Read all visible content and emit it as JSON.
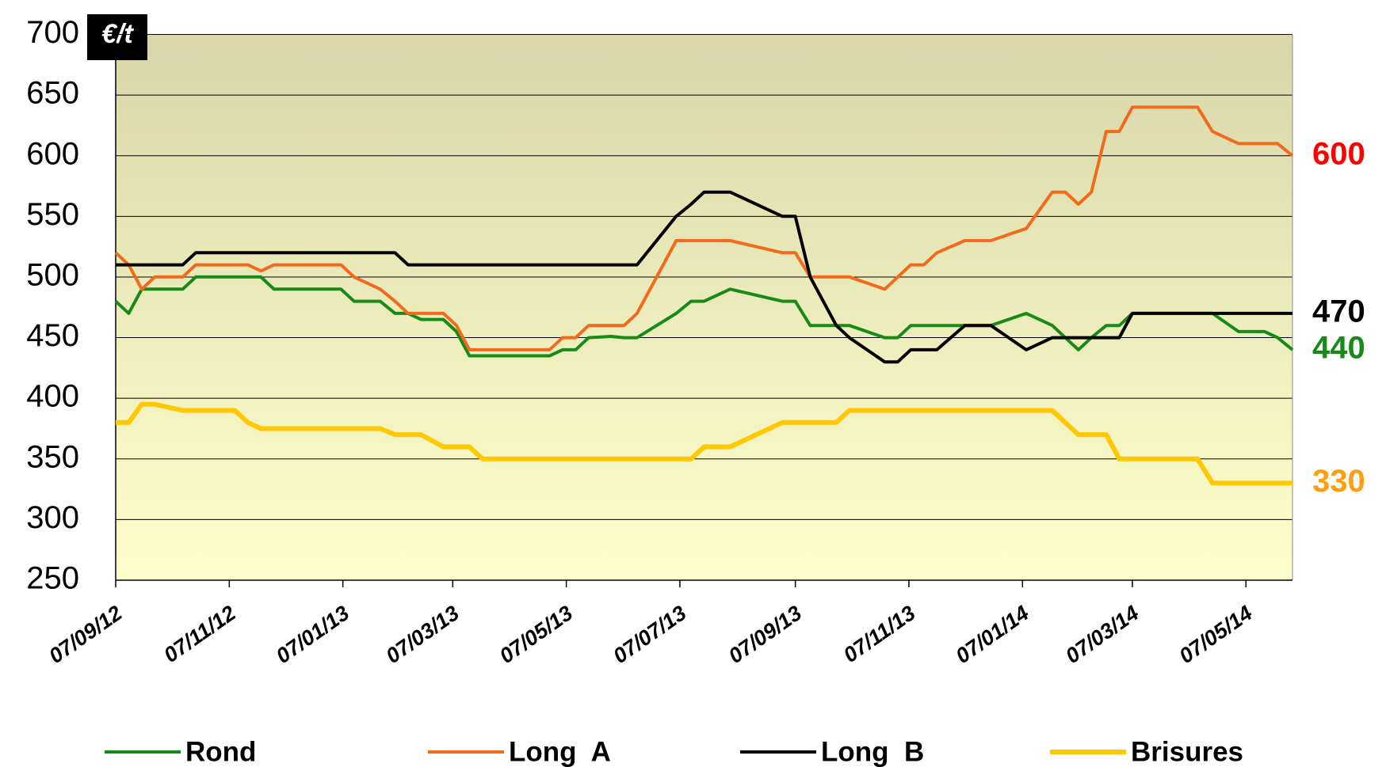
{
  "chart_data": {
    "type": "line",
    "unit": "€/t",
    "x": [
      "2012-09-07",
      "2012-09-14",
      "2012-09-21",
      "2012-09-28",
      "2012-10-13",
      "2012-10-20",
      "2012-11-10",
      "2012-11-17",
      "2012-11-24",
      "2012-12-01",
      "2013-01-06",
      "2013-01-13",
      "2013-01-27",
      "2013-02-04",
      "2013-02-11",
      "2013-02-18",
      "2013-03-02",
      "2013-03-09",
      "2013-03-16",
      "2013-03-23",
      "2013-04-28",
      "2013-05-05",
      "2013-05-12",
      "2013-05-19",
      "2013-05-31",
      "2013-06-07",
      "2013-06-14",
      "2013-07-05",
      "2013-07-13",
      "2013-07-20",
      "2013-08-03",
      "2013-08-31",
      "2013-09-07",
      "2013-09-15",
      "2013-09-29",
      "2013-10-06",
      "2013-10-25",
      "2013-11-01",
      "2013-11-08",
      "2013-11-15",
      "2013-11-22",
      "2013-12-07",
      "2013-12-21",
      "2014-01-09",
      "2014-01-23",
      "2014-01-30",
      "2014-02-06",
      "2014-02-13",
      "2014-02-21",
      "2014-02-28",
      "2014-03-07",
      "2014-04-11",
      "2014-04-19",
      "2014-05-03",
      "2014-05-17",
      "2014-05-24",
      "2014-06-01"
    ],
    "series": [
      {
        "name": "Rond",
        "color": "#178a17",
        "label_color": "#178a17",
        "width": 4,
        "values": [
          480,
          470,
          490,
          490,
          490,
          500,
          500,
          500,
          500,
          490,
          490,
          480,
          480,
          470,
          470,
          465,
          465,
          455,
          435,
          435,
          435,
          440,
          440,
          450,
          451,
          450,
          450,
          470,
          480,
          480,
          490,
          480,
          480,
          460,
          460,
          460,
          450,
          450,
          460,
          460,
          460,
          460,
          460,
          470,
          460,
          450,
          440,
          450,
          460,
          460,
          470,
          470,
          470,
          455,
          455,
          450,
          440
        ]
      },
      {
        "name": "Long  A",
        "color": "#f26b1d",
        "label_color": "#ff0000",
        "width": 4,
        "values": [
          520,
          510,
          490,
          500,
          500,
          510,
          510,
          510,
          505,
          510,
          510,
          500,
          490,
          480,
          470,
          470,
          470,
          460,
          440,
          440,
          440,
          450,
          450,
          460,
          460,
          460,
          470,
          530,
          530,
          530,
          530,
          520,
          520,
          500,
          500,
          500,
          490,
          500,
          510,
          510,
          520,
          530,
          530,
          540,
          570,
          570,
          560,
          570,
          620,
          620,
          640,
          640,
          620,
          610,
          610,
          610,
          600
        ]
      },
      {
        "name": "Long  B",
        "color": "#000000",
        "label_color": "#000000",
        "width": 4,
        "values": [
          510,
          510,
          510,
          510,
          510,
          520,
          520,
          520,
          520,
          520,
          520,
          520,
          520,
          520,
          510,
          510,
          510,
          510,
          510,
          510,
          510,
          510,
          510,
          510,
          510,
          510,
          510,
          550,
          560,
          570,
          570,
          550,
          550,
          500,
          460,
          450,
          430,
          430,
          440,
          440,
          440,
          460,
          460,
          440,
          450,
          450,
          450,
          450,
          450,
          450,
          470,
          470,
          470,
          470,
          470,
          470,
          470
        ]
      },
      {
        "name": "Brisures",
        "color": "#ffc800",
        "label_color": "#ff9f10",
        "width": 6,
        "values": [
          380,
          380,
          395,
          395,
          390,
          390,
          390,
          380,
          375,
          375,
          375,
          375,
          375,
          370,
          370,
          370,
          360,
          360,
          360,
          350,
          350,
          350,
          350,
          350,
          350,
          350,
          350,
          350,
          350,
          360,
          360,
          380,
          380,
          380,
          380,
          390,
          390,
          390,
          390,
          390,
          390,
          390,
          390,
          390,
          390,
          380,
          370,
          370,
          370,
          350,
          350,
          350,
          330,
          330,
          330,
          330,
          330
        ]
      }
    ],
    "ylim": [
      250,
      700
    ],
    "yticks": [
      250,
      300,
      350,
      400,
      450,
      500,
      550,
      600,
      650,
      700
    ],
    "xlim": [
      "2012-09-07",
      "2014-06-01"
    ],
    "xticks": [
      {
        "value": "2012-09-07",
        "label": "07/09/12"
      },
      {
        "value": "2012-11-07",
        "label": "07/11/12"
      },
      {
        "value": "2013-01-07",
        "label": "07/01/13"
      },
      {
        "value": "2013-03-07",
        "label": "07/03/13"
      },
      {
        "value": "2013-05-07",
        "label": "07/05/13"
      },
      {
        "value": "2013-07-07",
        "label": "07/07/13"
      },
      {
        "value": "2013-09-07",
        "label": "07/09/13"
      },
      {
        "value": "2013-11-07",
        "label": "07/11/13"
      },
      {
        "value": "2014-01-07",
        "label": "07/01/14"
      },
      {
        "value": "2014-03-07",
        "label": "07/03/14"
      },
      {
        "value": "2014-05-07",
        "label": "07/05/14"
      }
    ],
    "grid": true,
    "legend": "bottom"
  }
}
